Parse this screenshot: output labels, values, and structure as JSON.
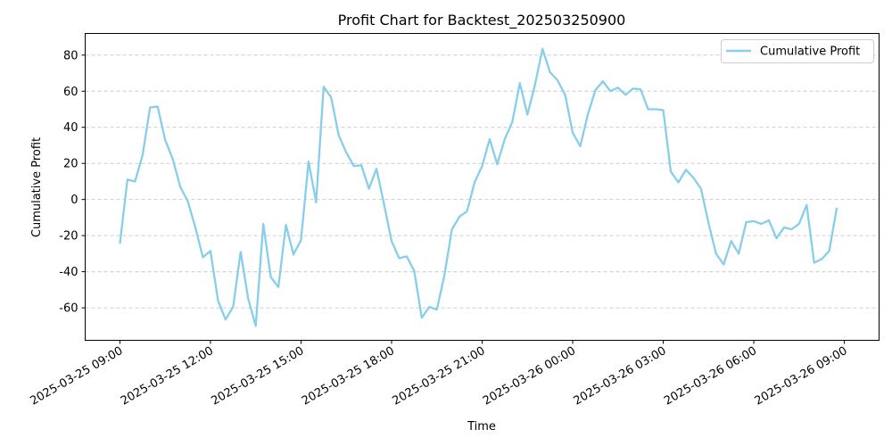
{
  "chart_data": {
    "type": "line",
    "title": "Profit Chart for Backtest_202503250900",
    "xlabel": "Time",
    "ylabel": "Cumulative Profit",
    "x_tick_labels": [
      "2025-03-25 09:00",
      "2025-03-25 12:00",
      "2025-03-25 15:00",
      "2025-03-25 18:00",
      "2025-03-25 21:00",
      "2025-03-26 00:00",
      "2025-03-26 03:00",
      "2025-03-26 06:00",
      "2025-03-26 09:00"
    ],
    "y_ticks": [
      -60,
      -40,
      -20,
      0,
      20,
      40,
      60,
      80
    ],
    "ylim": [
      -78,
      92
    ],
    "xlim_hours": [
      -1.15,
      25.15
    ],
    "grid": "y-dashed",
    "legend_position": "top-right",
    "color": "#87CEEB",
    "series": [
      {
        "name": "Cumulative Profit",
        "x_hours": [
          0,
          0.25,
          0.5,
          0.75,
          1.0,
          1.25,
          1.5,
          1.75,
          2.0,
          2.25,
          2.5,
          2.75,
          3.0,
          3.25,
          3.5,
          3.75,
          4.0,
          4.25,
          4.5,
          4.75,
          5.0,
          5.25,
          5.5,
          5.75,
          6.0,
          6.25,
          6.5,
          6.75,
          7.0,
          7.25,
          7.5,
          7.75,
          8.0,
          8.25,
          8.5,
          8.75,
          9.0,
          9.25,
          9.5,
          9.75,
          10.0,
          10.25,
          10.5,
          10.75,
          11.0,
          11.25,
          11.5,
          11.75,
          12.0,
          12.25,
          12.5,
          12.75,
          13.0,
          13.25,
          13.5,
          13.75,
          14.0,
          14.25,
          14.5,
          14.75,
          15.0,
          15.25,
          15.5,
          15.75,
          16.0,
          16.25,
          16.5,
          16.75,
          17.0,
          17.25,
          17.5,
          17.75,
          18.0,
          18.25,
          18.5,
          18.75,
          19.0,
          19.25,
          19.5,
          19.75,
          20.0,
          20.25,
          20.5,
          20.75,
          21.0,
          21.25,
          21.5,
          21.75,
          22.0,
          22.25,
          22.5,
          22.75,
          23.0,
          23.25,
          23.5,
          23.75
        ],
        "values": [
          -24.5,
          11,
          10,
          24.5,
          51,
          51.5,
          33,
          22.5,
          7,
          -1,
          -15.5,
          -32,
          -28.5,
          -56,
          -66.5,
          -59.5,
          -29,
          -55,
          -70,
          -13.5,
          -43,
          -48.5,
          -14,
          -30.5,
          -22.5,
          21,
          -1.5,
          62.5,
          56.5,
          35.5,
          26,
          18.5,
          19,
          6,
          17,
          -2.5,
          -23,
          -32.5,
          -31.5,
          -39.5,
          -65.5,
          -59.5,
          -61,
          -42,
          -16.5,
          -9.5,
          -6.5,
          9.5,
          18.5,
          33.5,
          19.5,
          33.5,
          43,
          64.5,
          47,
          63.5,
          83.5,
          70.5,
          66,
          58,
          37,
          29.5,
          47,
          60.5,
          65.5,
          60,
          62,
          58,
          61.5,
          61,
          50,
          50,
          49.5,
          15.5,
          9.5,
          16.5,
          12,
          6,
          -13,
          -30,
          -36,
          -23,
          -30,
          -12.5,
          -12,
          -13.5,
          -11.5,
          -21.5,
          -15.5,
          -16.5,
          -13.5,
          -3,
          -35,
          -33,
          -28.5,
          -4.5
        ]
      }
    ]
  }
}
